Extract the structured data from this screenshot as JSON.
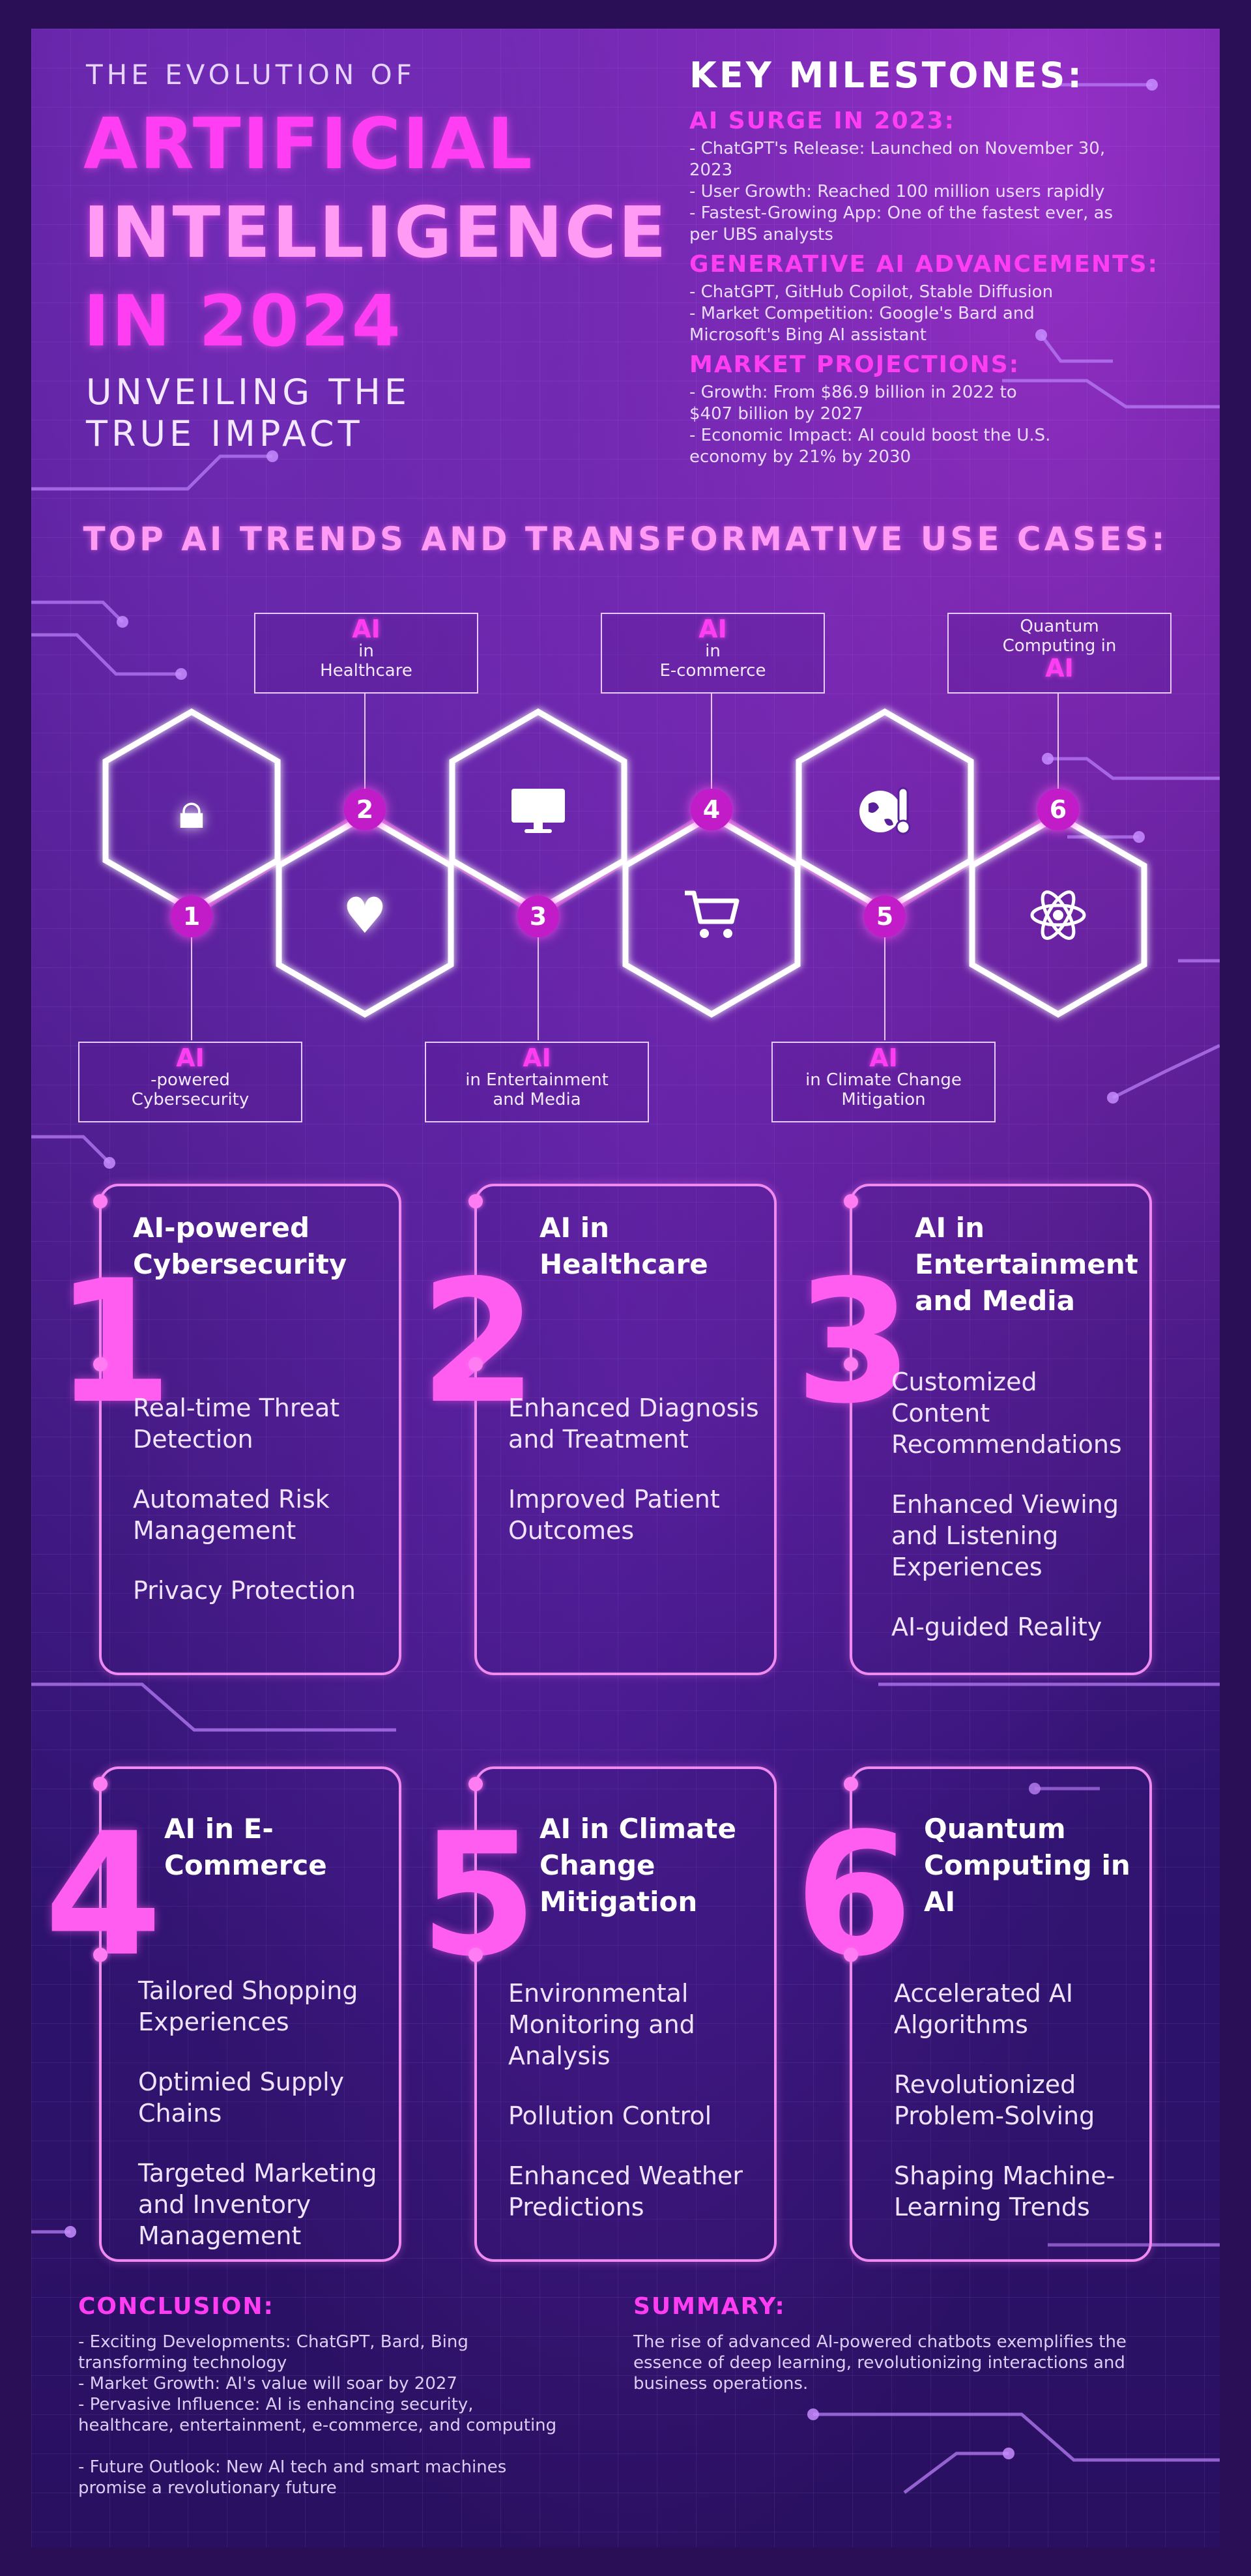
{
  "header": {
    "pre_title": "THE EVOLUTION OF",
    "title_line1": "ARTIFICIAL",
    "title_line2": "INTELLIGENCE",
    "title_line3": "IN 2024",
    "subtitle_line1": "UNVEILING THE",
    "subtitle_line2": "TRUE IMPACT"
  },
  "milestones": {
    "heading": "KEY MILESTONES:",
    "sections": [
      {
        "title": "AI SURGE IN 2023:",
        "lines": [
          "- ChatGPT's Release: Launched on November 30,",
          "2023",
          "- User Growth: Reached 100 million users rapidly",
          "- Fastest-Growing App: One of the fastest ever, as",
          "per UBS analysts"
        ]
      },
      {
        "title": "GENERATIVE AI ADVANCEMENTS:",
        "lines": [
          "- ChatGPT, GitHub Copilot, Stable Diffusion",
          "- Market Competition: Google's Bard and",
          "Microsoft's Bing AI assistant"
        ]
      },
      {
        "title": "MARKET PROJECTIONS:",
        "lines": [
          "- Growth: From $86.9 billion in 2022 to",
          "$407 billion by 2027",
          "- Economic Impact: AI could boost the U.S.",
          "economy by 21% by 2030"
        ]
      }
    ]
  },
  "trends": {
    "title": "TOP AI TRENDS AND TRANSFORMATIVE USE CASES:",
    "labels": [
      {
        "num": "1",
        "ai": "AI",
        "text1": "-powered",
        "text2": "Cybersecurity"
      },
      {
        "num": "2",
        "ai": "AI",
        "text1": "in",
        "text2": "Healthcare"
      },
      {
        "num": "3",
        "ai": "AI",
        "text1": "in Entertainment",
        "text2": "and Media"
      },
      {
        "num": "4",
        "ai": "AI",
        "text1": "in",
        "text2": "E-commerce"
      },
      {
        "num": "5",
        "ai": "AI",
        "text1": "in Climate Change",
        "text2": "Mitigation"
      },
      {
        "num": "6",
        "ai": "AI",
        "text1": "Quantum",
        "text2": "Computing in"
      }
    ],
    "icons": [
      "lock-icon",
      "heart-pulse-icon",
      "monitor-icon",
      "shopping-cart-icon",
      "globe-thermometer-icon",
      "atom-icon"
    ]
  },
  "cards": [
    {
      "num": "1",
      "title": "AI-powered Cybersecurity",
      "items": [
        "Real-time Threat Detection",
        "Automated Risk Management",
        "Privacy Protection"
      ]
    },
    {
      "num": "2",
      "title": "AI in Healthcare",
      "items": [
        "Enhanced Diagnosis and Treatment",
        "Improved Patient Outcomes"
      ]
    },
    {
      "num": "3",
      "title": "AI in Entertainment and Media",
      "items": [
        "Customized Content Recommendations",
        "Enhanced Viewing and Listening Experiences",
        "AI-guided Reality"
      ]
    },
    {
      "num": "4",
      "title": "AI in E-Commerce",
      "items": [
        "Tailored Shopping Experiences",
        "Optimied Supply Chains",
        "Targeted Marketing and Inventory Management"
      ]
    },
    {
      "num": "5",
      "title": "AI in Climate Change Mitigation",
      "items": [
        "Environmental Monitoring and Analysis",
        "Pollution Control",
        "Enhanced Weather Predictions"
      ]
    },
    {
      "num": "6",
      "title": "Quantum Computing in AI",
      "items": [
        "Accelerated AI Algorithms",
        "Revolutionized Problem-Solving",
        "Shaping Machine-Learning Trends"
      ]
    }
  ],
  "conclusion": {
    "title": "CONCLUSION:",
    "lines": [
      "- Exciting Developments: ChatGPT, Bard, Bing",
      "transforming technology",
      "- Market Growth: AI's value will soar by 2027",
      "- Pervasive Influence: AI is enhancing security,",
      "healthcare, entertainment, e-commerce, and computing",
      "",
      "- Future Outlook: New AI tech and smart machines",
      "promise a revolutionary future"
    ]
  },
  "summary": {
    "title": "SUMMARY:",
    "lines": [
      "The rise of advanced AI-powered chatbots exemplifies the",
      "essence of deep learning, revolutionizing interactions and",
      "business operations."
    ]
  },
  "colors": {
    "accent_magenta": "#ff3df2",
    "accent_pink": "#ff9af5",
    "card_border": "#f08af0",
    "background": "#3b157a"
  }
}
